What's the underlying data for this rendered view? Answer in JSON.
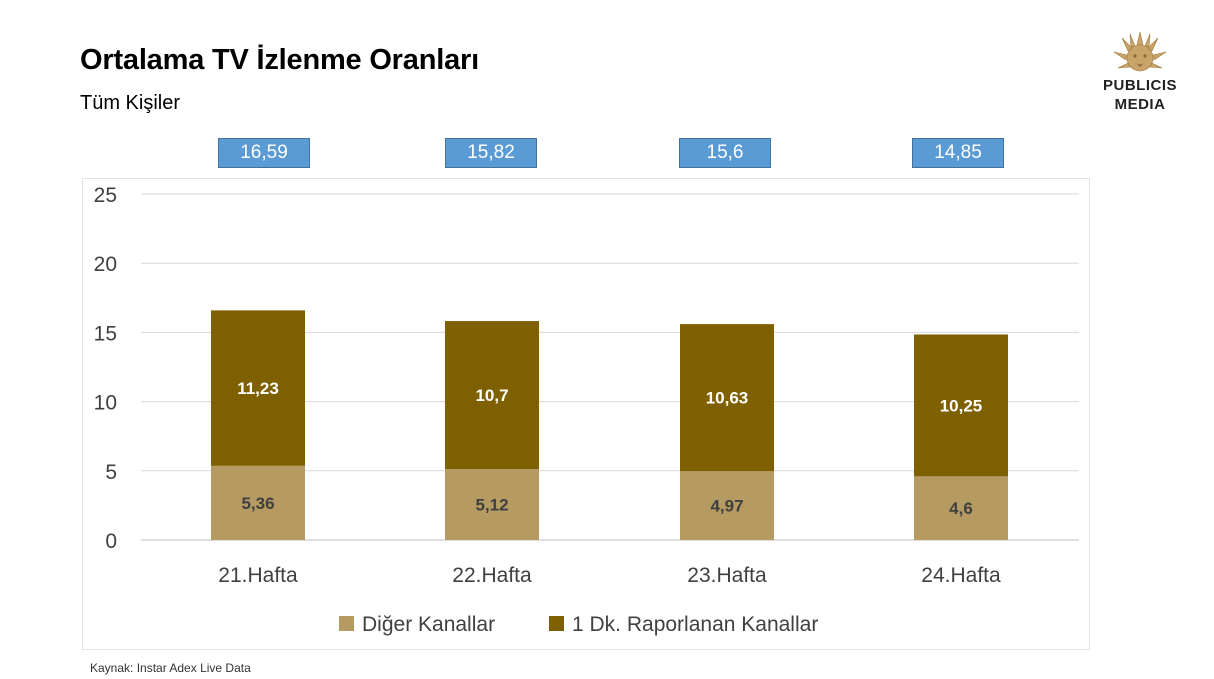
{
  "header": {
    "title": "Ortalama TV İzlenme Oranları",
    "subtitle": "Tüm Kişiler"
  },
  "logo": {
    "line1": "PUBLICIS",
    "line2": "MEDIA"
  },
  "source": "Kaynak: Instar  Adex Live Data",
  "totals": [
    "16,59",
    "15,82",
    "15,6",
    "14,85"
  ],
  "colors": {
    "diger": "#b59a62",
    "raporlanan": "#7f6000",
    "total_box": "#5b9bd5"
  },
  "chart_data": {
    "type": "bar",
    "stacked": true,
    "categories": [
      "21.Hafta",
      "22.Hafta",
      "23.Hafta",
      "24.Hafta"
    ],
    "series": [
      {
        "name": "Diğer Kanallar",
        "values": [
          5.36,
          5.12,
          4.97,
          4.6
        ],
        "labels": [
          "5,36",
          "5,12",
          "4,97",
          "4,6"
        ],
        "color": "#b59a62"
      },
      {
        "name": "1 Dk. Raporlanan Kanallar",
        "values": [
          11.23,
          10.7,
          10.63,
          10.25
        ],
        "labels": [
          "11,23",
          "10,7",
          "10,63",
          "10,25"
        ],
        "color": "#7f6000"
      }
    ],
    "ylim": [
      0,
      25
    ],
    "yticks": [
      0,
      5,
      10,
      15,
      20,
      25
    ],
    "grid": true,
    "legend": "bottom"
  }
}
